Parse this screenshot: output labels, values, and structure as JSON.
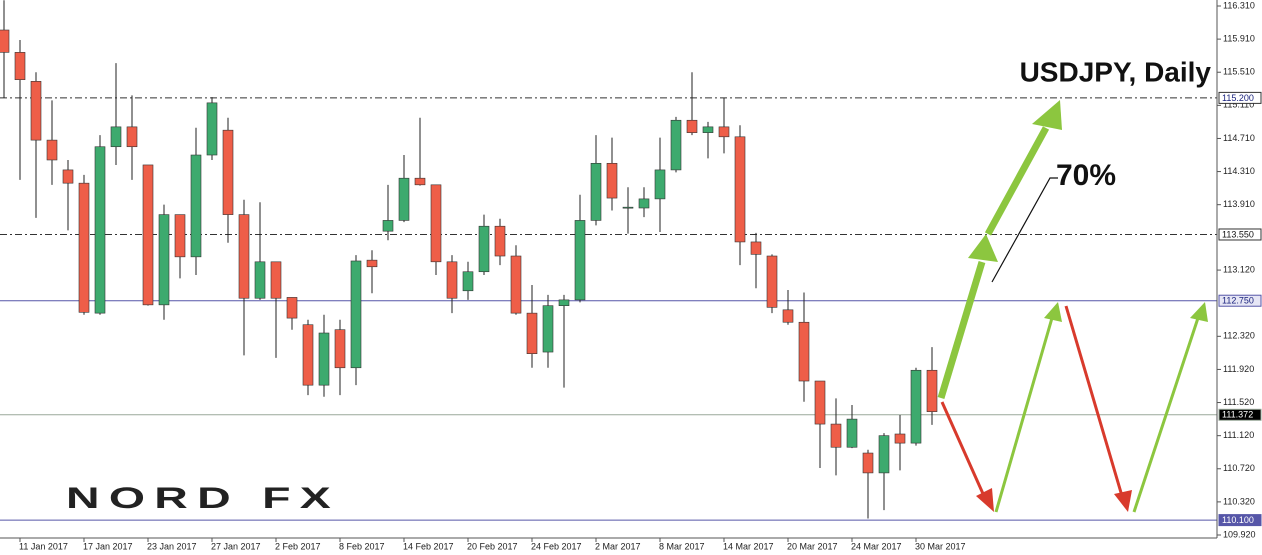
{
  "chart_data": {
    "type": "candlestick",
    "title": "USDJPY, Daily",
    "annotations": [
      "70%"
    ],
    "logo": "NORD FX",
    "categories": [
      null,
      "11 Jan 2017",
      null,
      null,
      null,
      "17 Jan 2017",
      null,
      null,
      null,
      "23 Jan 2017",
      null,
      null,
      null,
      "27 Jan 2017",
      null,
      null,
      null,
      "2 Feb 2017",
      null,
      null,
      null,
      "8 Feb 2017",
      null,
      null,
      null,
      "14 Feb 2017",
      null,
      null,
      null,
      "20 Feb 2017",
      null,
      null,
      null,
      "24 Feb 2017",
      null,
      null,
      null,
      "2 Mar 2017",
      null,
      null,
      null,
      "8 Mar 2017",
      null,
      null,
      null,
      "14 Mar 2017",
      null,
      null,
      null,
      "20 Mar 2017",
      null,
      null,
      null,
      "24 Mar 2017",
      null,
      null,
      null,
      "30 Mar 2017",
      null
    ],
    "open": [
      116.02,
      115.75,
      115.4,
      114.69,
      114.33,
      114.17,
      112.6,
      114.61,
      114.85,
      114.39,
      112.7,
      113.79,
      113.28,
      114.51,
      114.81,
      113.79,
      112.78,
      113.22,
      112.79,
      112.46,
      111.73,
      112.4,
      111.94,
      113.24,
      113.59,
      113.72,
      114.23,
      114.15,
      113.22,
      112.87,
      113.1,
      113.65,
      113.29,
      112.6,
      112.13,
      112.69,
      112.76,
      113.72,
      114.41,
      113.88,
      113.87,
      113.98,
      114.33,
      114.93,
      114.78,
      114.85,
      114.73,
      113.46,
      113.29,
      112.64,
      112.49,
      111.78,
      111.26,
      110.98,
      110.91,
      110.67,
      111.14,
      111.03,
      111.91
    ],
    "high": [
      116.38,
      115.9,
      115.51,
      115.17,
      114.45,
      114.27,
      114.75,
      115.62,
      115.23,
      114.39,
      113.91,
      113.79,
      114.84,
      115.21,
      114.96,
      113.97,
      113.94,
      113.22,
      112.79,
      112.52,
      112.58,
      112.52,
      113.3,
      113.36,
      114.15,
      114.51,
      114.96,
      114.15,
      113.3,
      113.22,
      113.79,
      113.74,
      113.42,
      112.94,
      112.82,
      112.82,
      114.03,
      114.75,
      114.72,
      114.12,
      114.12,
      114.72,
      114.97,
      115.51,
      114.91,
      115.2,
      114.87,
      113.57,
      113.31,
      112.88,
      112.85,
      111.78,
      111.57,
      111.49,
      110.95,
      111.15,
      111.37,
      111.94,
      112.19
    ],
    "low": [
      115.2,
      114.21,
      113.75,
      114.15,
      113.6,
      112.58,
      112.58,
      114.39,
      114.21,
      112.69,
      112.52,
      113.02,
      113.06,
      114.45,
      113.45,
      112.09,
      112.76,
      112.06,
      112.4,
      111.61,
      111.59,
      111.61,
      111.73,
      112.84,
      113.48,
      113.7,
      114.14,
      113.06,
      112.6,
      112.76,
      113.06,
      113.18,
      112.58,
      111.94,
      111.94,
      111.7,
      112.73,
      113.66,
      113.84,
      113.56,
      113.76,
      113.58,
      114.3,
      114.75,
      114.47,
      114.53,
      113.18,
      112.9,
      112.6,
      112.46,
      111.53,
      110.73,
      110.64,
      110.97,
      110.12,
      110.22,
      110.7,
      111.0,
      111.25
    ],
    "close": [
      115.75,
      115.42,
      114.69,
      114.45,
      114.17,
      112.61,
      114.61,
      114.85,
      114.61,
      112.7,
      113.79,
      113.28,
      114.51,
      115.14,
      113.79,
      112.78,
      113.22,
      112.78,
      112.54,
      111.73,
      112.36,
      111.94,
      113.23,
      113.16,
      113.72,
      114.23,
      114.15,
      113.22,
      112.78,
      113.1,
      113.65,
      113.29,
      112.6,
      112.11,
      112.69,
      112.76,
      113.72,
      114.41,
      113.99,
      113.88,
      113.98,
      114.33,
      114.93,
      114.78,
      114.85,
      114.73,
      113.46,
      113.31,
      112.67,
      112.49,
      111.78,
      111.26,
      110.98,
      111.32,
      110.67,
      111.12,
      111.03,
      111.91,
      111.41
    ],
    "up_color": "#3daa6e",
    "down_color": "#ee5e48",
    "ylim": [
      109.92,
      116.31
    ],
    "yticks": [
      {
        "value": 116.31,
        "label": "116.310"
      },
      {
        "value": 115.91,
        "label": "115.910"
      },
      {
        "value": 115.51,
        "label": "115.510"
      },
      {
        "value": 115.11,
        "label": "115.110"
      },
      {
        "value": 114.71,
        "label": "114.710"
      },
      {
        "value": 114.31,
        "label": "114.310"
      },
      {
        "value": 113.91,
        "label": "113.910"
      },
      {
        "value": 113.12,
        "label": "113.120"
      },
      {
        "value": 112.32,
        "label": "112.320"
      },
      {
        "value": 111.92,
        "label": "111.920"
      },
      {
        "value": 111.52,
        "label": "111.520"
      },
      {
        "value": 111.12,
        "label": "111.120"
      },
      {
        "value": 110.72,
        "label": "110.720"
      },
      {
        "value": 110.32,
        "label": "110.320"
      },
      {
        "value": 109.92,
        "label": "109.920"
      }
    ],
    "levels": [
      {
        "value": 115.2,
        "label": "115.200",
        "color": "#333333",
        "dashed": true,
        "box": "#ffffff",
        "text_color": "#1a237e"
      },
      {
        "value": 113.55,
        "label": "113.550",
        "color": "#333333",
        "dashed": true,
        "box": "#ffffff",
        "text_color": "#111111"
      },
      {
        "value": 112.75,
        "label": "112.750",
        "color": "#5656a8",
        "dashed": false,
        "box": "#e6e6f5",
        "text_color": "#1a237e"
      },
      {
        "value": 111.372,
        "label": "111.372",
        "color": "#9aa89a",
        "dashed": false,
        "box": "#000000",
        "text_color": "#ffffff"
      },
      {
        "value": 110.1,
        "label": "110.100",
        "color": "#5656a8",
        "dashed": false,
        "box": "#5656a8",
        "text_color": "#ffffff"
      }
    ]
  }
}
